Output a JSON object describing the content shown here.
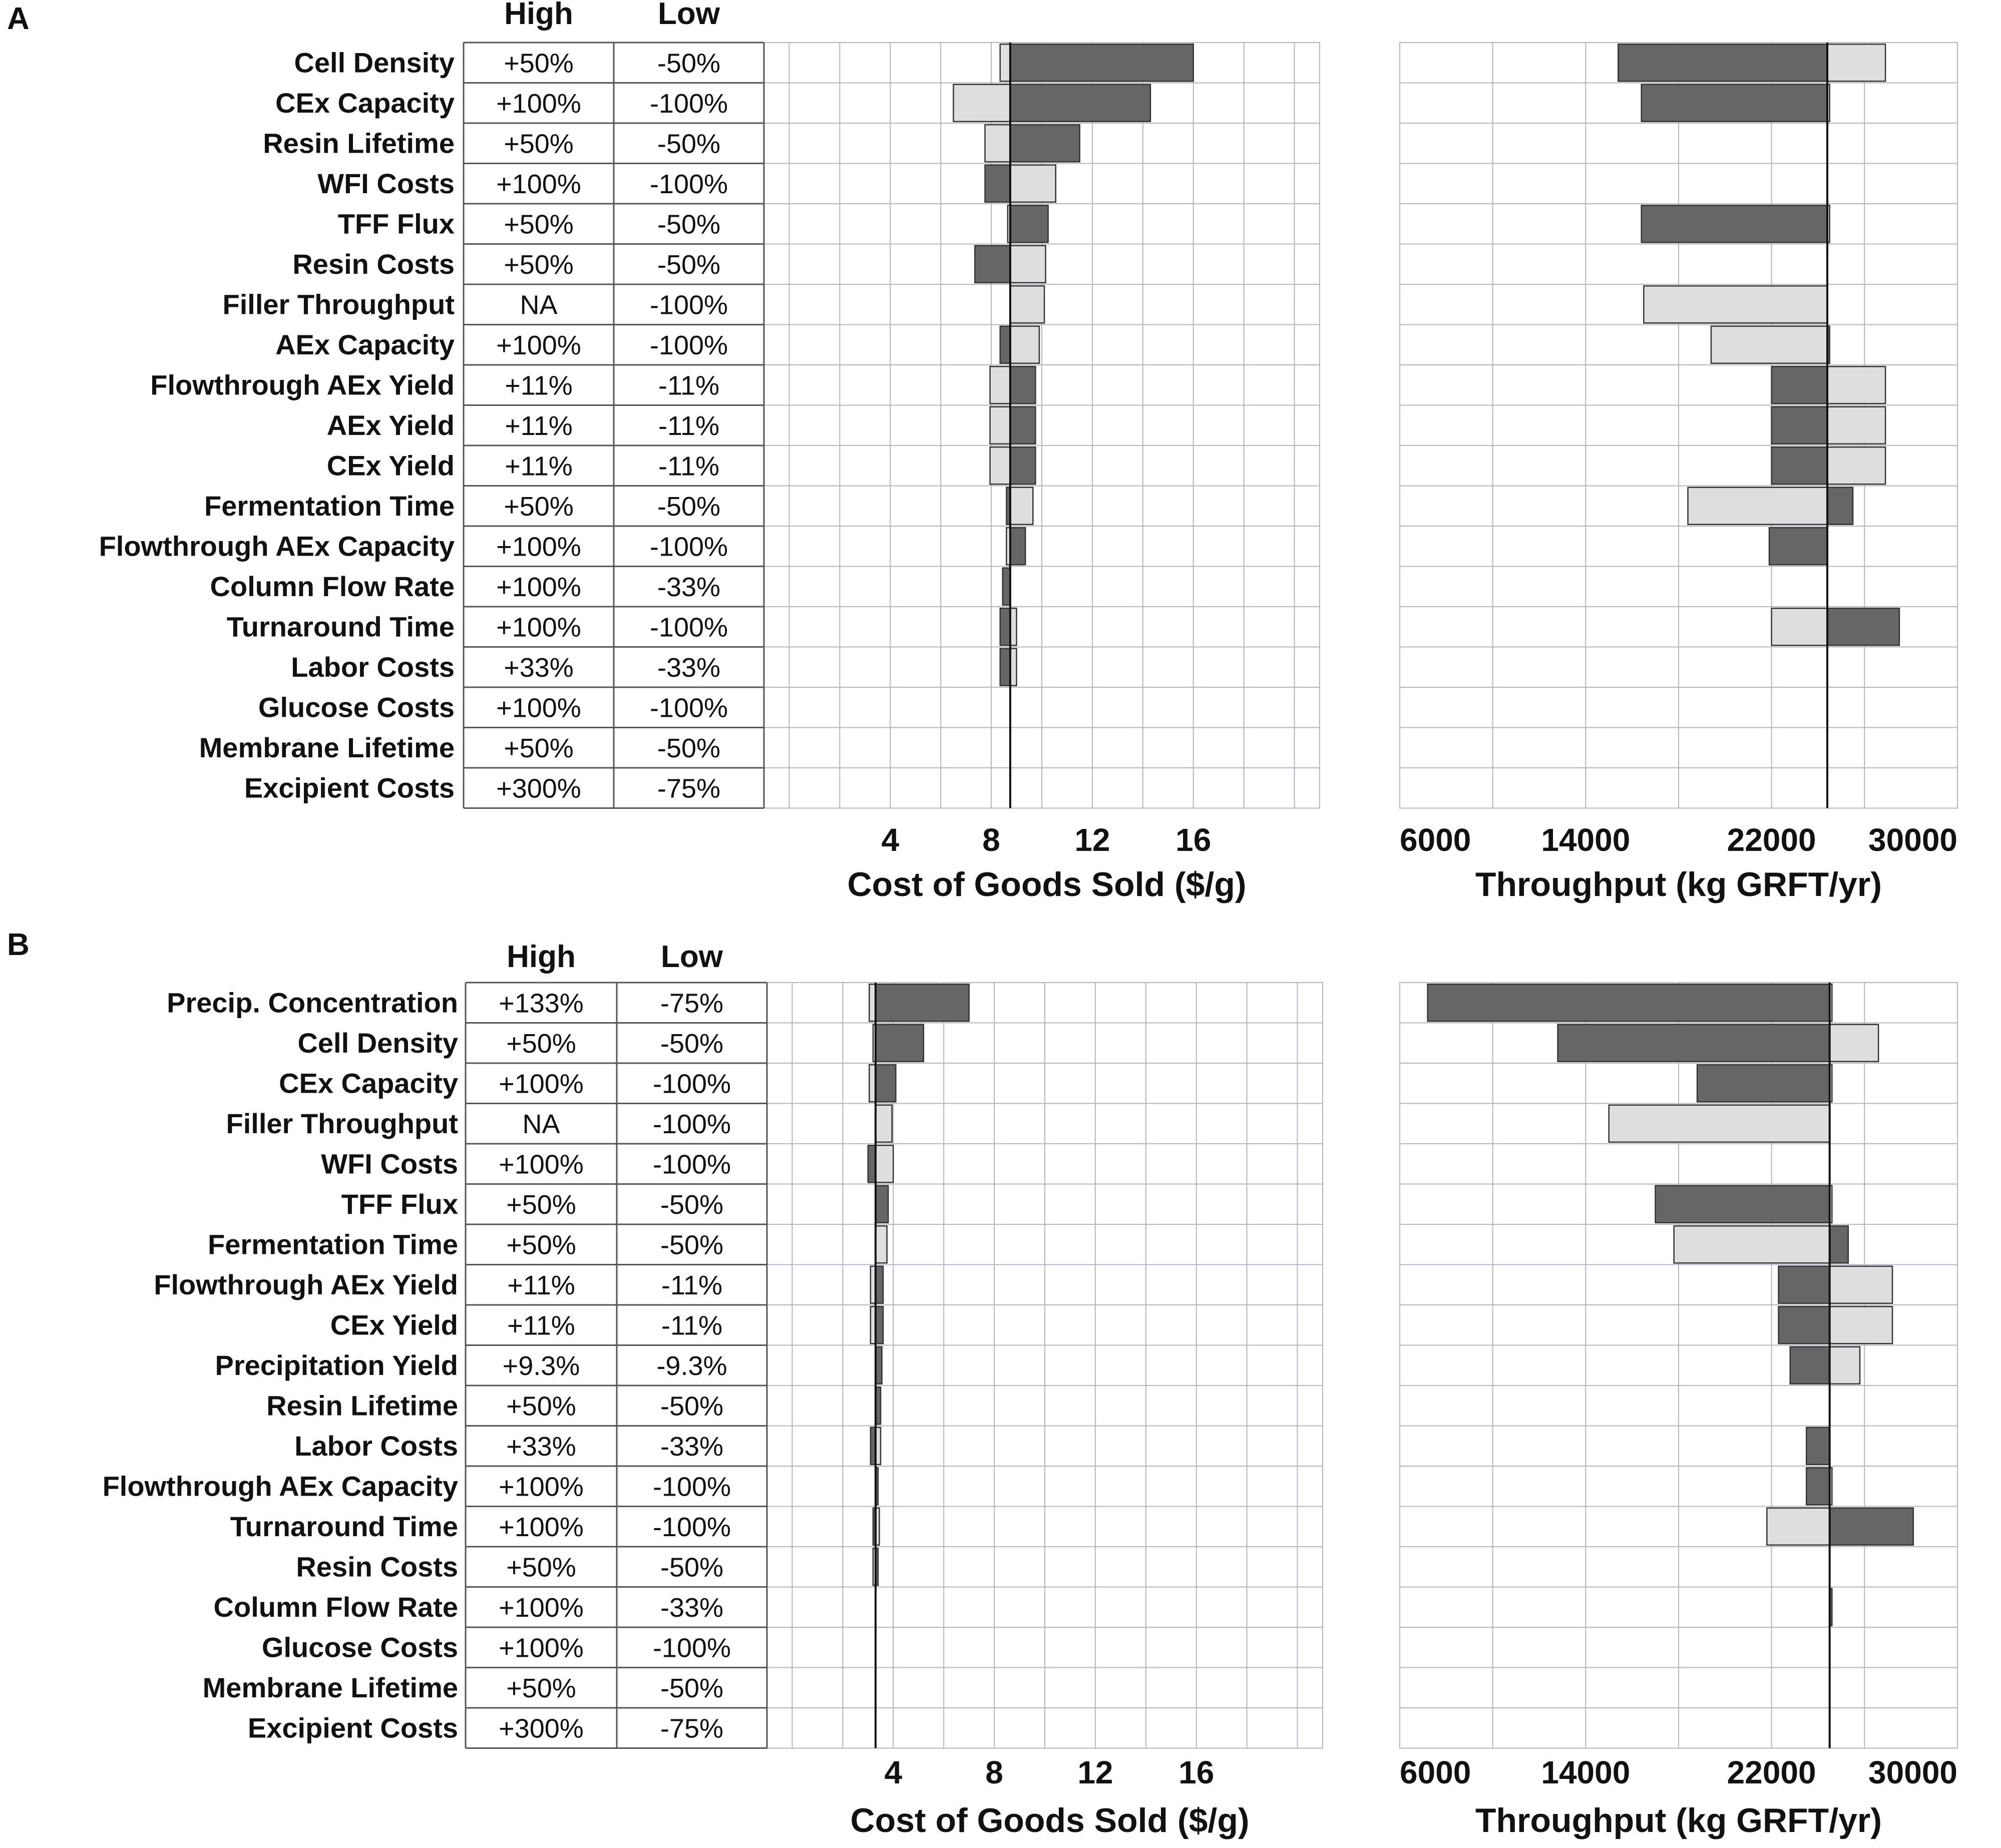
{
  "colors": {
    "high_bar": "#666666",
    "low_bar": "#dedede",
    "bar_stroke": "#333333",
    "grid": "#b4b4c2",
    "table_border": "#555555",
    "baseline": "#111111"
  },
  "chart_data": [
    {
      "panel": "A",
      "type": "bar",
      "orientation": "horizontal-tornado",
      "table_headers": {
        "high": "High",
        "low": "Low"
      },
      "rows": [
        {
          "label": "Cell Density",
          "high": "+50%",
          "low": "-50%",
          "cogs_high": 16.0,
          "cogs_low": 8.35,
          "thr_high": 15400,
          "thr_low": 26900
        },
        {
          "label": "CEx Capacity",
          "high": "+100%",
          "low": "-100%",
          "cogs_high": 14.3,
          "cogs_low": 6.5,
          "thr_high": 16400,
          "thr_low": 24500
        },
        {
          "label": "Resin Lifetime",
          "high": "+50%",
          "low": "-50%",
          "cogs_high": 11.5,
          "cogs_low": 7.75,
          "thr_high": 24400,
          "thr_low": 24400
        },
        {
          "label": "WFI Costs",
          "high": "+100%",
          "low": "-100%",
          "cogs_high": 7.75,
          "cogs_low": 10.55,
          "thr_high": 24400,
          "thr_low": 24400
        },
        {
          "label": "TFF Flux",
          "high": "+50%",
          "low": "-50%",
          "cogs_high": 10.25,
          "cogs_low": 8.65,
          "thr_high": 16400,
          "thr_low": 24500
        },
        {
          "label": "Resin Costs",
          "high": "+50%",
          "low": "-50%",
          "cogs_high": 7.35,
          "cogs_low": 10.15,
          "thr_high": 24400,
          "thr_low": 24400
        },
        {
          "label": "Filler Throughput",
          "high": "NA",
          "low": "-100%",
          "cogs_high": null,
          "cogs_low": 10.1,
          "thr_high": null,
          "thr_low": 16500
        },
        {
          "label": "AEx Capacity",
          "high": "+100%",
          "low": "-100%",
          "cogs_high": 8.35,
          "cogs_low": 9.9,
          "thr_high": 24500,
          "thr_low": 19400
        },
        {
          "label": "Flowthrough AEx Yield",
          "high": "+11%",
          "low": "-11%",
          "cogs_high": 9.75,
          "cogs_low": 7.95,
          "thr_high": 22000,
          "thr_low": 26900
        },
        {
          "label": "AEx Yield",
          "high": "+11%",
          "low": "-11%",
          "cogs_high": 9.75,
          "cogs_low": 7.95,
          "thr_high": 22000,
          "thr_low": 26900
        },
        {
          "label": "CEx Yield",
          "high": "+11%",
          "low": "-11%",
          "cogs_high": 9.75,
          "cogs_low": 7.95,
          "thr_high": 22000,
          "thr_low": 26900
        },
        {
          "label": "Fermentation Time",
          "high": "+50%",
          "low": "-50%",
          "cogs_high": 8.6,
          "cogs_low": 9.65,
          "thr_high": 25500,
          "thr_low": 18400
        },
        {
          "label": "Flowthrough AEx Capacity",
          "high": "+100%",
          "low": "-100%",
          "cogs_high": 9.35,
          "cogs_low": 8.6,
          "thr_high": 21900,
          "thr_low": 24400
        },
        {
          "label": "Column Flow Rate",
          "high": "+100%",
          "low": "-33%",
          "cogs_high": 8.45,
          "cogs_low": 8.75,
          "thr_high": 24400,
          "thr_low": 24400
        },
        {
          "label": "Turnaround Time",
          "high": "+100%",
          "low": "-100%",
          "cogs_high": 8.35,
          "cogs_low": 9.0,
          "thr_high": 27500,
          "thr_low": 22000
        },
        {
          "label": "Labor Costs",
          "high": "+33%",
          "low": "-33%",
          "cogs_high": 8.35,
          "cogs_low": 9.0,
          "thr_high": 24400,
          "thr_low": 24400
        },
        {
          "label": "Glucose Costs",
          "high": "+100%",
          "low": "-100%",
          "cogs_high": 8.75,
          "cogs_low": 8.75,
          "thr_high": 24400,
          "thr_low": 24400
        },
        {
          "label": "Membrane Lifetime",
          "high": "+50%",
          "low": "-50%",
          "cogs_high": 8.75,
          "cogs_low": 8.75,
          "thr_high": 24400,
          "thr_low": 24400
        },
        {
          "label": "Excipient Costs",
          "high": "+300%",
          "low": "-75%",
          "cogs_high": 8.75,
          "cogs_low": 8.75,
          "thr_high": 24400,
          "thr_low": 24400
        }
      ],
      "cogs_axis": {
        "title": "Cost of Goods Sold ($/g)",
        "xlim": [
          -1,
          21
        ],
        "ticks": [
          4,
          8,
          12,
          16
        ],
        "baseline": 8.75
      },
      "throughput_axis": {
        "title": "Throughput (kg GRFT/yr)",
        "xlim": [
          6000,
          30000
        ],
        "ticks": [
          6000,
          14000,
          22000,
          30000
        ],
        "baseline": 24400
      }
    },
    {
      "panel": "B",
      "type": "bar",
      "orientation": "horizontal-tornado",
      "table_headers": {
        "high": "High",
        "low": "Low"
      },
      "rows": [
        {
          "label": "Precip. Concentration",
          "high": "+133%",
          "low": "-75%",
          "cogs_high": 7.0,
          "cogs_low": 3.05,
          "thr_high": 7200,
          "thr_low": 24600
        },
        {
          "label": "Cell Density",
          "high": "+50%",
          "low": "-50%",
          "cogs_high": 5.2,
          "cogs_low": 3.2,
          "thr_high": 12800,
          "thr_low": 26600
        },
        {
          "label": "CEx Capacity",
          "high": "+100%",
          "low": "-100%",
          "cogs_high": 4.1,
          "cogs_low": 3.05,
          "thr_high": 18800,
          "thr_low": 24600
        },
        {
          "label": "Filler Throughput",
          "high": "NA",
          "low": "-100%",
          "cogs_high": null,
          "cogs_low": 3.95,
          "thr_high": null,
          "thr_low": 15000
        },
        {
          "label": "WFI Costs",
          "high": "+100%",
          "low": "-100%",
          "cogs_high": 3.0,
          "cogs_low": 4.0,
          "thr_high": 24500,
          "thr_low": 24500
        },
        {
          "label": "TFF Flux",
          "high": "+50%",
          "low": "-50%",
          "cogs_high": 3.8,
          "cogs_low": 3.3,
          "thr_high": 17000,
          "thr_low": 24600
        },
        {
          "label": "Fermentation Time",
          "high": "+50%",
          "low": "-50%",
          "cogs_high": 3.3,
          "cogs_low": 3.75,
          "thr_high": 25300,
          "thr_low": 17800
        },
        {
          "label": "Flowthrough AEx Yield",
          "high": "+11%",
          "low": "-11%",
          "cogs_high": 3.6,
          "cogs_low": 3.1,
          "thr_high": 22300,
          "thr_low": 27200
        },
        {
          "label": "CEx Yield",
          "high": "+11%",
          "low": "-11%",
          "cogs_high": 3.6,
          "cogs_low": 3.1,
          "thr_high": 22300,
          "thr_low": 27200
        },
        {
          "label": "Precipitation Yield",
          "high": "+9.3%",
          "low": "-9.3%",
          "cogs_high": 3.55,
          "cogs_low": 3.3,
          "thr_high": 22800,
          "thr_low": 25800
        },
        {
          "label": "Resin Lifetime",
          "high": "+50%",
          "low": "-50%",
          "cogs_high": 3.5,
          "cogs_low": 3.3,
          "thr_high": 24500,
          "thr_low": 24500
        },
        {
          "label": "Labor Costs",
          "high": "+33%",
          "low": "-33%",
          "cogs_high": 3.1,
          "cogs_low": 3.5,
          "thr_high": 23500,
          "thr_low": 24500
        },
        {
          "label": "Flowthrough AEx Capacity",
          "high": "+100%",
          "low": "-100%",
          "cogs_high": 3.4,
          "cogs_low": 3.3,
          "thr_high": 23500,
          "thr_low": 24600
        },
        {
          "label": "Turnaround Time",
          "high": "+100%",
          "low": "-100%",
          "cogs_high": 3.2,
          "cogs_low": 3.45,
          "thr_high": 28100,
          "thr_low": 21800
        },
        {
          "label": "Resin Costs",
          "high": "+50%",
          "low": "-50%",
          "cogs_high": 3.4,
          "cogs_low": 3.2,
          "thr_high": 24500,
          "thr_low": 24500
        },
        {
          "label": "Column Flow Rate",
          "high": "+100%",
          "low": "-33%",
          "cogs_high": 3.3,
          "cogs_low": 3.3,
          "thr_high": 24600,
          "thr_low": 24500
        },
        {
          "label": "Glucose Costs",
          "high": "+100%",
          "low": "-100%",
          "cogs_high": 3.3,
          "cogs_low": 3.3,
          "thr_high": 24500,
          "thr_low": 24500
        },
        {
          "label": "Membrane Lifetime",
          "high": "+50%",
          "low": "-50%",
          "cogs_high": 3.3,
          "cogs_low": 3.3,
          "thr_high": 24500,
          "thr_low": 24500
        },
        {
          "label": "Excipient Costs",
          "high": "+300%",
          "low": "-75%",
          "cogs_high": 3.3,
          "cogs_low": 3.3,
          "thr_high": 24500,
          "thr_low": 24500
        }
      ],
      "cogs_axis": {
        "title": "Cost of Goods Sold ($/g)",
        "xlim": [
          -1,
          21
        ],
        "ticks": [
          4,
          8,
          12,
          16
        ],
        "baseline": 3.3
      },
      "throughput_axis": {
        "title": "Throughput (kg GRFT/yr)",
        "xlim": [
          6000,
          30000
        ],
        "ticks": [
          6000,
          14000,
          22000,
          30000
        ],
        "baseline": 24500
      }
    }
  ]
}
